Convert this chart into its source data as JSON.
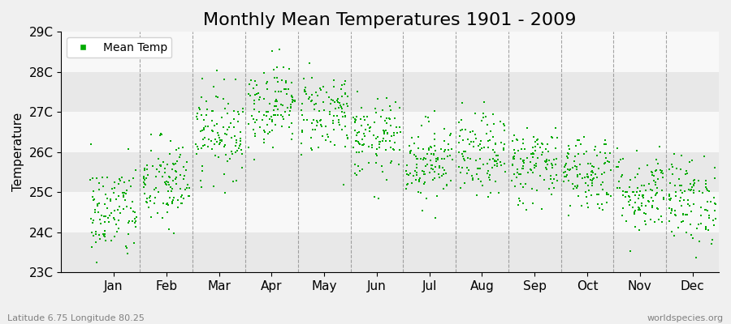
{
  "title": "Monthly Mean Temperatures 1901 - 2009",
  "ylabel": "Temperature",
  "subtitle": "Latitude 6.75 Longitude 80.25",
  "watermark": "worldspecies.org",
  "monthly_means": [
    24.5,
    25.2,
    26.5,
    27.2,
    27.0,
    26.3,
    25.8,
    25.9,
    25.7,
    25.5,
    25.0,
    24.8
  ],
  "monthly_stds": [
    0.62,
    0.58,
    0.55,
    0.52,
    0.52,
    0.5,
    0.5,
    0.52,
    0.5,
    0.5,
    0.52,
    0.55
  ],
  "n_years": 109,
  "ylim": [
    23.0,
    29.0
  ],
  "yticks": [
    23,
    24,
    25,
    26,
    27,
    28,
    29
  ],
  "ytick_labels": [
    "23C",
    "24C",
    "25C",
    "26C",
    "27C",
    "28C",
    "29C"
  ],
  "month_labels": [
    "Jan",
    "Feb",
    "Mar",
    "Apr",
    "May",
    "Jun",
    "Jul",
    "Aug",
    "Sep",
    "Oct",
    "Nov",
    "Dec"
  ],
  "marker_color": "#00aa00",
  "marker_size": 4,
  "background_color": "#f0f0f0",
  "band_colors": [
    "#e8e8e8",
    "#f8f8f8"
  ],
  "title_fontsize": 16,
  "axis_fontsize": 11,
  "legend_fontsize": 10,
  "seed": 42
}
